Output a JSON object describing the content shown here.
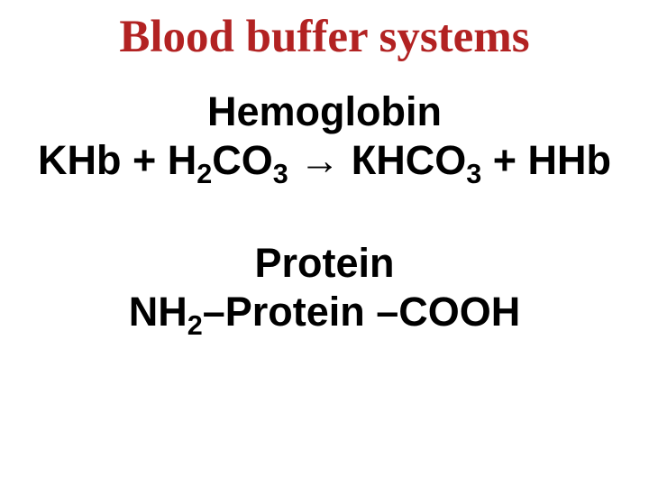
{
  "title": {
    "text": "Blood buffer systems",
    "color": "#b22222",
    "fontsize": 51
  },
  "content_color": "#000000",
  "content_fontsize": 45,
  "section1": {
    "heading": "Hemoglobin",
    "eq_part1": "KHb + H",
    "eq_sub1": "2",
    "eq_part2": "CO",
    "eq_sub2": "3",
    "eq_arrow": " ",
    "eq_arrow_symbol": "→",
    "eq_part3": " КHCO",
    "eq_sub3": "3",
    "eq_part4": " + HHb"
  },
  "section2": {
    "heading": "Protein",
    "eq_part1": "NH",
    "eq_sub1": "2",
    "eq_part2": "–Protein –COOH"
  },
  "background_color": "#ffffff"
}
